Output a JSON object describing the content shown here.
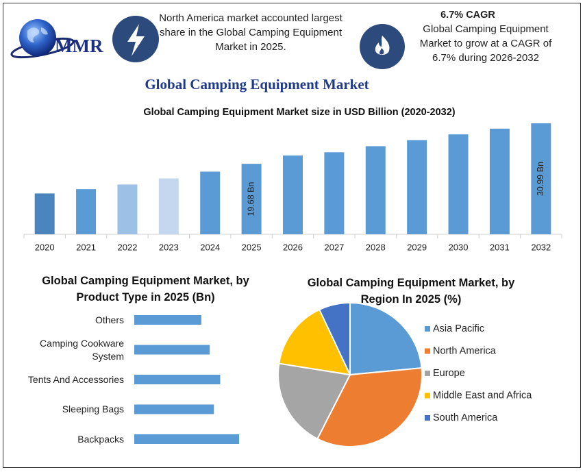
{
  "header": {
    "logo_text": "MMR",
    "share_note": "North America market accounted largest share in the Global Camping Equipment Market in 2025.",
    "cagr_title": "6.7% CAGR",
    "cagr_text": "Global Camping Equipment Market to grow at a CAGR of 6.7% during 2026-2032"
  },
  "page_title": "Global Camping Equipment Market",
  "chart_data": [
    {
      "type": "bar",
      "title": "Global Camping Equipment Market size in USD Billion (2020-2032)",
      "categories": [
        "2020",
        "2021",
        "2022",
        "2023",
        "2024",
        "2025",
        "2026",
        "2027",
        "2028",
        "2029",
        "2030",
        "2031",
        "2032"
      ],
      "values": [
        11.4,
        12.6,
        13.9,
        15.6,
        17.5,
        19.68,
        22.0,
        22.9,
        24.6,
        26.3,
        27.9,
        29.5,
        30.99
      ],
      "value_labels": [
        null,
        null,
        null,
        null,
        null,
        "19.68 Bn",
        null,
        null,
        null,
        null,
        null,
        null,
        "30.99 Bn"
      ],
      "colors": [
        "#4a85bd",
        "#5b9bd5",
        "#9dc0e6",
        "#c4d7ef",
        "#5b9bd5",
        "#5b9bd5",
        "#5b9bd5",
        "#5b9bd5",
        "#5b9bd5",
        "#5b9bd5",
        "#5b9bd5",
        "#5b9bd5",
        "#5b9bd5"
      ]
    },
    {
      "type": "barh",
      "title": "Global Camping Equipment Market, by Product Type in 2025 (Bn)",
      "categories": [
        "Others",
        "Camping Cookware System",
        "Tents And Accessories",
        "Sleeping Bags",
        "Backpacks"
      ],
      "values": [
        3.2,
        3.6,
        4.1,
        3.8,
        5.0
      ],
      "color": "#5b9bd5"
    },
    {
      "type": "pie",
      "title": "Global Camping Equipment Market, by Region In 2025 (%)",
      "categories": [
        "Asia Pacific",
        "North America",
        "Europe",
        "Middle East and Africa",
        "South America"
      ],
      "values": [
        23.5,
        34,
        20,
        15.5,
        7
      ],
      "colors": [
        "#5b9bd5",
        "#ed7d31",
        "#a5a5a5",
        "#ffc000",
        "#4472c4"
      ],
      "legend": "right"
    }
  ]
}
